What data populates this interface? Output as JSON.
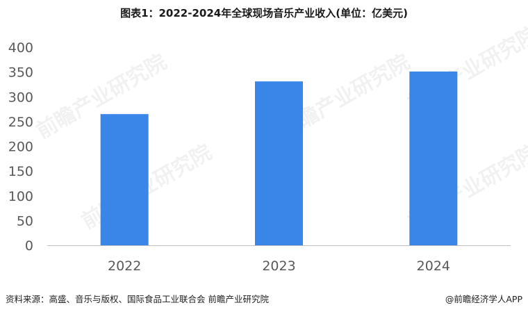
{
  "title": "图表1：2022-2024年全球现场音乐产业收入(单位：亿美元)",
  "footer": {
    "source": "资料来源：高盛、音乐与版权、国际食品工业联合会 前瞻产业研究院",
    "brand": "@前瞻经济学人APP"
  },
  "watermark": "前瞻产业研究院",
  "colors": {
    "bar": "#3a86e8",
    "axis": "#bfbfbf",
    "text": "#595959"
  },
  "chart_data": {
    "type": "bar",
    "categories": [
      "2022",
      "2023",
      "2024"
    ],
    "values": [
      265,
      331,
      351
    ],
    "ylim": [
      0,
      400
    ],
    "yticks": [
      0,
      50,
      100,
      150,
      200,
      250,
      300,
      350,
      400
    ],
    "grid": false,
    "xlabel": "",
    "ylabel": ""
  }
}
